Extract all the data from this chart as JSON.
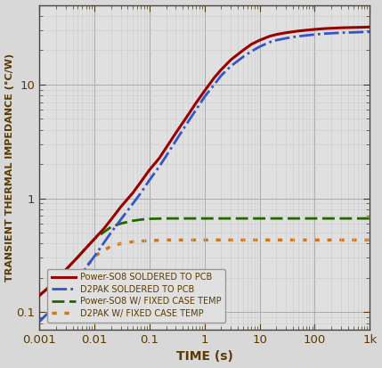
{
  "title": "",
  "xlabel": "TIME (s)",
  "ylabel": "TRANSIENT THERMAL IMPEDANCE (°C/W)",
  "background_color": "#d8d8d8",
  "plot_bg_color": "#e0e0e0",
  "text_color": "#5a3a00",
  "tick_label_color": "#5a3a00",
  "legend_entries": [
    "Power-SO8 SOLDERED TO PCB",
    "D2PAK SOLDERED TO PCB",
    "Power-SO8 W/ FIXED CASE TEMP",
    "D2PAK W/ FIXED CASE TEMP"
  ],
  "curve_colors": [
    "#990000",
    "#3355cc",
    "#226600",
    "#cc7722"
  ],
  "power_so8_pcb": {
    "x": [
      0.001,
      0.0015,
      0.002,
      0.003,
      0.005,
      0.007,
      0.01,
      0.015,
      0.02,
      0.03,
      0.05,
      0.07,
      0.1,
      0.15,
      0.2,
      0.3,
      0.5,
      0.7,
      1,
      1.5,
      2,
      3,
      5,
      7,
      10,
      15,
      20,
      30,
      50,
      70,
      100,
      150,
      200,
      300,
      500,
      700,
      1000
    ],
    "y": [
      0.14,
      0.165,
      0.19,
      0.235,
      0.305,
      0.365,
      0.44,
      0.545,
      0.65,
      0.84,
      1.12,
      1.4,
      1.78,
      2.25,
      2.78,
      3.75,
      5.4,
      6.9,
      8.8,
      11.5,
      13.5,
      16.5,
      20,
      22.5,
      24.5,
      26.5,
      27.5,
      28.5,
      29.5,
      30,
      30.5,
      31,
      31.2,
      31.5,
      31.7,
      31.8,
      32
    ]
  },
  "d2pak_pcb": {
    "x": [
      0.001,
      0.0015,
      0.002,
      0.003,
      0.005,
      0.007,
      0.01,
      0.015,
      0.02,
      0.03,
      0.05,
      0.07,
      0.1,
      0.15,
      0.2,
      0.3,
      0.5,
      0.7,
      1,
      1.5,
      2,
      3,
      5,
      7,
      10,
      15,
      20,
      30,
      50,
      70,
      100,
      150,
      200,
      300,
      500,
      700,
      1000
    ],
    "y": [
      0.083,
      0.1,
      0.115,
      0.145,
      0.195,
      0.245,
      0.31,
      0.41,
      0.5,
      0.65,
      0.9,
      1.12,
      1.45,
      1.9,
      2.35,
      3.2,
      4.7,
      6.0,
      7.8,
      10.0,
      12.0,
      14.5,
      17.5,
      19.5,
      21.5,
      23.5,
      24.5,
      25.5,
      26.5,
      27,
      27.5,
      28,
      28.2,
      28.5,
      28.7,
      28.9,
      29
    ]
  },
  "power_so8_fixed": {
    "x": [
      0.001,
      0.002,
      0.003,
      0.005,
      0.007,
      0.01,
      0.02,
      0.03,
      0.05,
      0.07,
      0.1,
      0.2,
      0.3,
      0.5,
      1,
      2,
      5,
      10,
      20,
      50,
      100,
      200,
      500,
      1000
    ],
    "y": [
      0.14,
      0.19,
      0.235,
      0.305,
      0.365,
      0.44,
      0.56,
      0.6,
      0.635,
      0.65,
      0.66,
      0.665,
      0.665,
      0.665,
      0.665,
      0.665,
      0.665,
      0.665,
      0.665,
      0.665,
      0.665,
      0.665,
      0.665,
      0.665
    ]
  },
  "d2pak_fixed": {
    "x": [
      0.001,
      0.002,
      0.003,
      0.005,
      0.007,
      0.01,
      0.02,
      0.03,
      0.05,
      0.07,
      0.1,
      0.2,
      0.3,
      0.5,
      1,
      2,
      5,
      10,
      20,
      50,
      100,
      200,
      500,
      1000
    ],
    "y": [
      0.083,
      0.115,
      0.145,
      0.195,
      0.245,
      0.31,
      0.38,
      0.4,
      0.415,
      0.42,
      0.425,
      0.43,
      0.43,
      0.43,
      0.43,
      0.43,
      0.43,
      0.43,
      0.43,
      0.43,
      0.43,
      0.43,
      0.43,
      0.43
    ]
  },
  "ylim": [
    0.07,
    50
  ],
  "xlim": [
    0.001,
    1000
  ],
  "yticks": [
    0.1,
    1,
    10
  ],
  "xticks": [
    0.001,
    0.01,
    0.1,
    1,
    10,
    100,
    1000
  ],
  "xtick_labels": [
    "0.001",
    "0.01",
    "0.1",
    "1",
    "10",
    "100",
    "1k"
  ],
  "ytick_labels": [
    "0.1",
    "1",
    "10"
  ],
  "major_grid_color": "#aaaaaa",
  "minor_grid_color": "#cccccc",
  "spine_color": "#444444"
}
